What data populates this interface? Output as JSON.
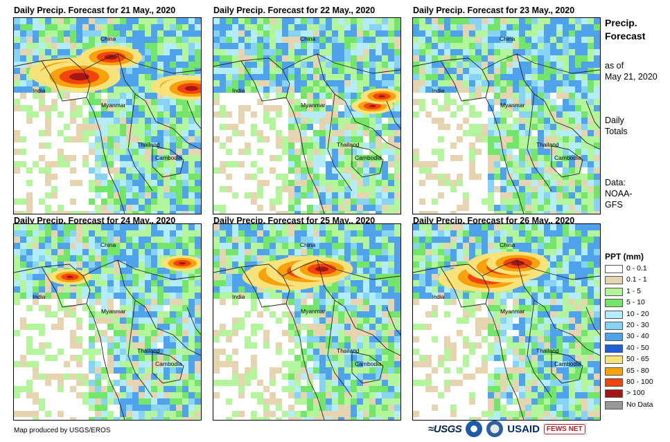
{
  "panels": [
    {
      "title": "Daily Precip. Forecast for 21 May., 2020",
      "heavy": [
        [
          0.3,
          0.28,
          3
        ],
        [
          0.35,
          0.3,
          3
        ],
        [
          0.52,
          0.2,
          2
        ],
        [
          0.9,
          0.35,
          2
        ],
        [
          0.95,
          0.36,
          2
        ]
      ],
      "mod": 0.55
    },
    {
      "title": "Daily Precip. Forecast for 22 May., 2020",
      "heavy": [
        [
          0.85,
          0.45,
          1
        ],
        [
          0.9,
          0.4,
          1
        ]
      ],
      "mod": 0.3
    },
    {
      "title": "Daily Precip. Forecast for 23 May., 2020",
      "heavy": [],
      "mod": 0.45
    },
    {
      "title": "Daily Precip. Forecast for 24 May., 2020",
      "heavy": [
        [
          0.3,
          0.27,
          1
        ],
        [
          0.9,
          0.2,
          1
        ]
      ],
      "mod": 0.45
    },
    {
      "title": "Daily Precip. Forecast for 25 May., 2020",
      "heavy": [
        [
          0.32,
          0.27,
          2
        ],
        [
          0.4,
          0.26,
          3
        ],
        [
          0.5,
          0.24,
          3
        ],
        [
          0.58,
          0.23,
          2
        ]
      ],
      "mod": 0.5
    },
    {
      "title": "Daily Precip. Forecast for 26 May., 2020",
      "heavy": [
        [
          0.3,
          0.28,
          2
        ],
        [
          0.4,
          0.27,
          3
        ],
        [
          0.5,
          0.22,
          3
        ],
        [
          0.56,
          0.2,
          2
        ]
      ],
      "mod": 0.55
    }
  ],
  "map_labels": {
    "china": "China",
    "india": "India",
    "myanmar": "Myanmar",
    "thailand": "Thailand",
    "cambodia": "Cambodia"
  },
  "side": {
    "heading_line1": "Precip.",
    "heading_line2": "Forecast",
    "asof_line1": "as of",
    "asof_line2": "May 21, 2020",
    "daily_line1": "Daily",
    "daily_line2": "Totals",
    "data_line1": "Data:",
    "data_line2": "NOAA-",
    "data_line3": "GFS"
  },
  "legend": {
    "title": "PPT (mm)",
    "items": [
      {
        "label": "0 - 0.1",
        "color": "#ffffff"
      },
      {
        "label": "0.1 - 1",
        "color": "#e6d3b0"
      },
      {
        "label": "1 - 5",
        "color": "#b3f59b"
      },
      {
        "label": "5 - 10",
        "color": "#73e66a"
      },
      {
        "label": "10 - 20",
        "color": "#b3ecfa"
      },
      {
        "label": "20 - 30",
        "color": "#87d3f6"
      },
      {
        "label": "30 - 40",
        "color": "#4ea3ec"
      },
      {
        "label": "40 - 50",
        "color": "#1f5fd8"
      },
      {
        "label": "50 - 65",
        "color": "#f8e27a"
      },
      {
        "label": "65 - 80",
        "color": "#f7a20d"
      },
      {
        "label": "80 - 100",
        "color": "#f2440d"
      },
      {
        "label": "> 100",
        "color": "#a51616"
      },
      {
        "label": "No Data",
        "color": "#999999"
      }
    ]
  },
  "credit": "Map produced by USGS/EROS",
  "logos": {
    "usgs": "USGS",
    "usaid": "USAID",
    "fews": "FEWS NET"
  }
}
